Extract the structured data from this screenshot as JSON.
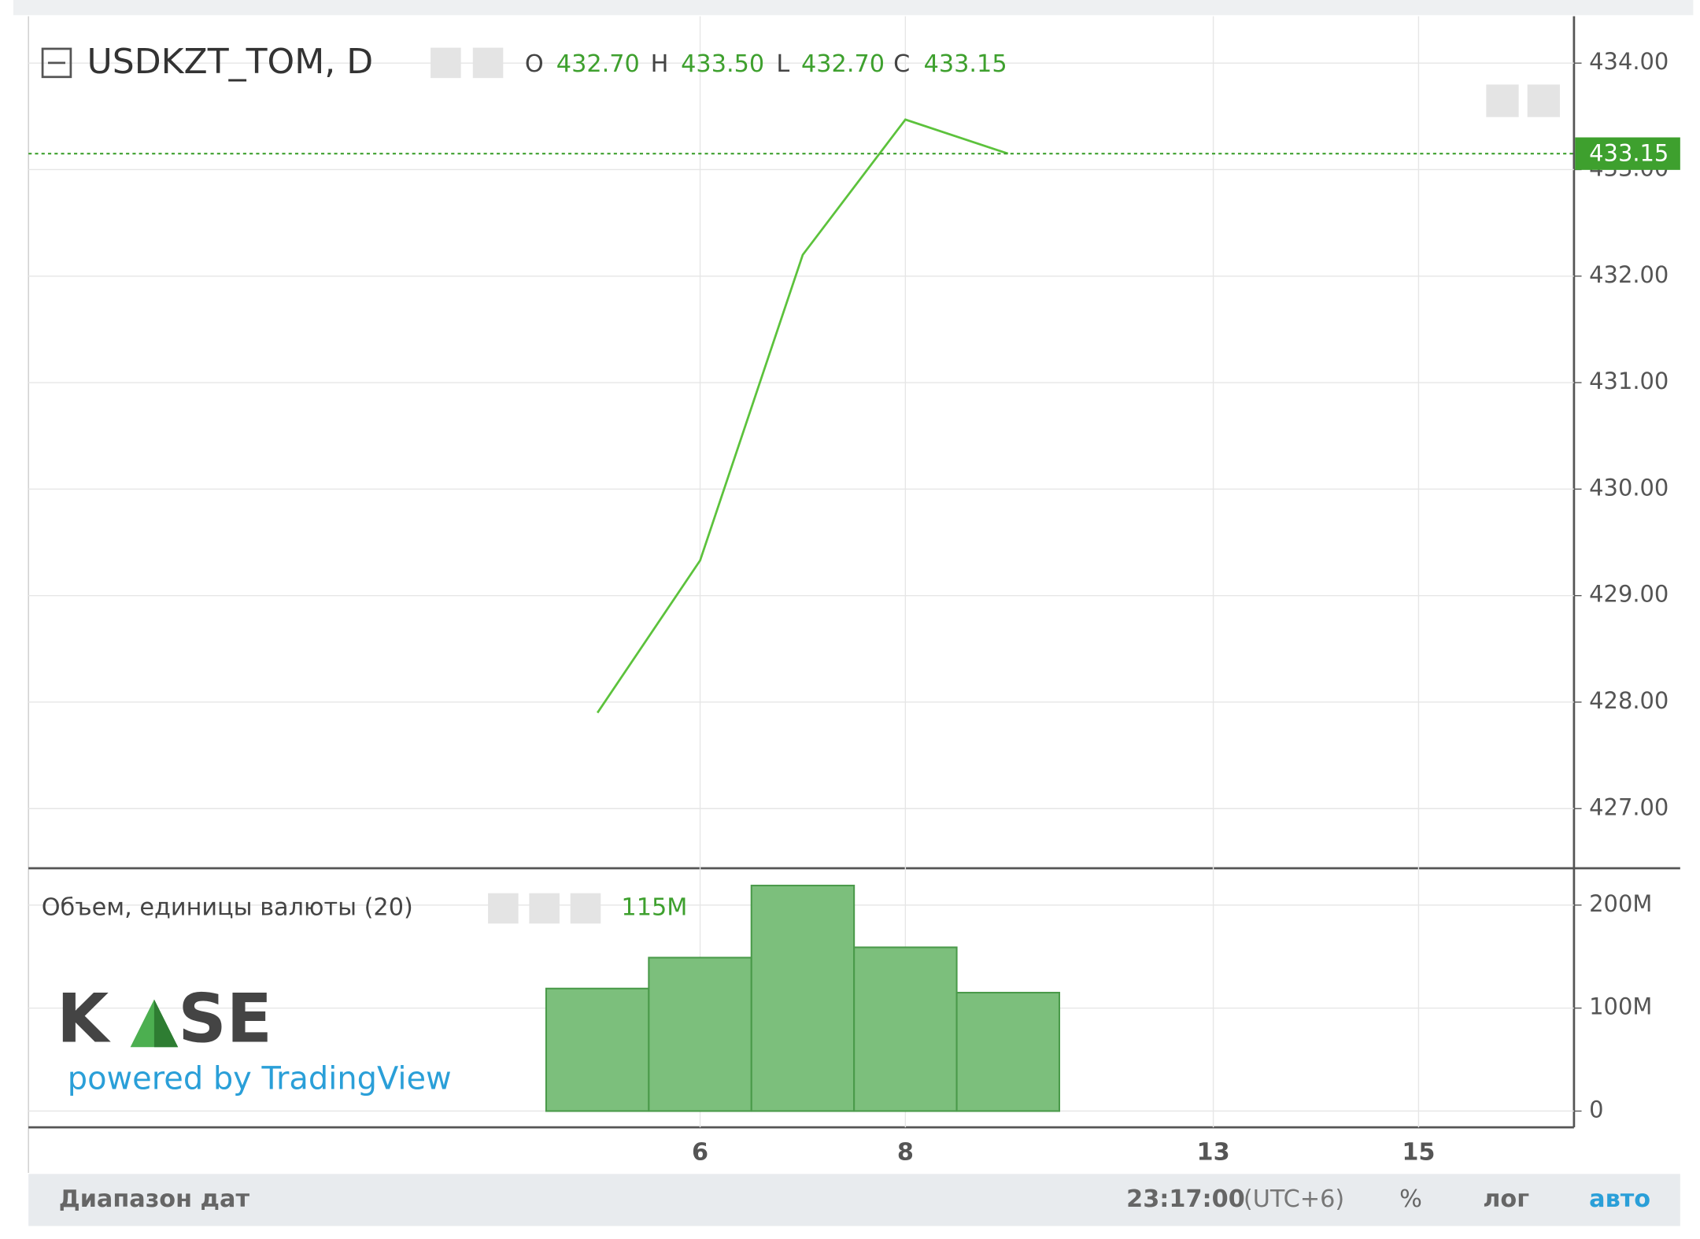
{
  "header": {
    "title": "USDKZT_TOM, D",
    "ohlc": [
      {
        "name": "O",
        "value": 432.7,
        "label": "432.70"
      },
      {
        "name": "H",
        "value": 433.5,
        "label": "433.50"
      },
      {
        "name": "L",
        "value": 432.7,
        "label": "432.70"
      },
      {
        "name": "C",
        "value": 433.15,
        "label": "433.15"
      }
    ]
  },
  "chart_data": [
    {
      "type": "line",
      "categories": [
        null,
        "6",
        null,
        "8",
        null,
        null,
        "13",
        null,
        "15"
      ],
      "values": [
        427.9,
        429.33,
        432.2,
        433.47,
        433.15,
        null,
        null,
        null,
        null
      ],
      "color": "#5cc23c",
      "ylim": [
        426.45,
        434.44
      ],
      "yticks": [
        {
          "value": 427,
          "label": "427.00"
        },
        {
          "value": 428,
          "label": "428.00"
        },
        {
          "value": 429,
          "label": "429.00"
        },
        {
          "value": 430,
          "label": "430.00"
        },
        {
          "value": 431,
          "label": "431.00"
        },
        {
          "value": 432,
          "label": "432.00"
        },
        {
          "value": 433,
          "label": "433.00"
        },
        {
          "value": 434,
          "label": "434.00"
        }
      ],
      "grid": true
    },
    {
      "type": "bar",
      "title": "Объем, единицы валюты (20)",
      "values": [
        119000000,
        149000000,
        219000000,
        159000000,
        115000000
      ],
      "value_labels": [
        null,
        null,
        null,
        null,
        "115M"
      ],
      "color": "#7cbf7c",
      "ylim": [
        -15800000,
        234700000
      ],
      "yticks": [
        0,
        {
          "value": 100000000,
          "label": "100M"
        },
        {
          "value": 200000000,
          "label": "200M"
        }
      ],
      "grid": true
    }
  ],
  "logo": {
    "left": "K",
    "right": "SE",
    "tagline": "powered by TradingView"
  },
  "footer": {
    "range": "Диапазон дат",
    "time": "23:17:00",
    "zone": "(UTC+6)",
    "percent": "%",
    "log": "лог",
    "auto": "авто"
  }
}
